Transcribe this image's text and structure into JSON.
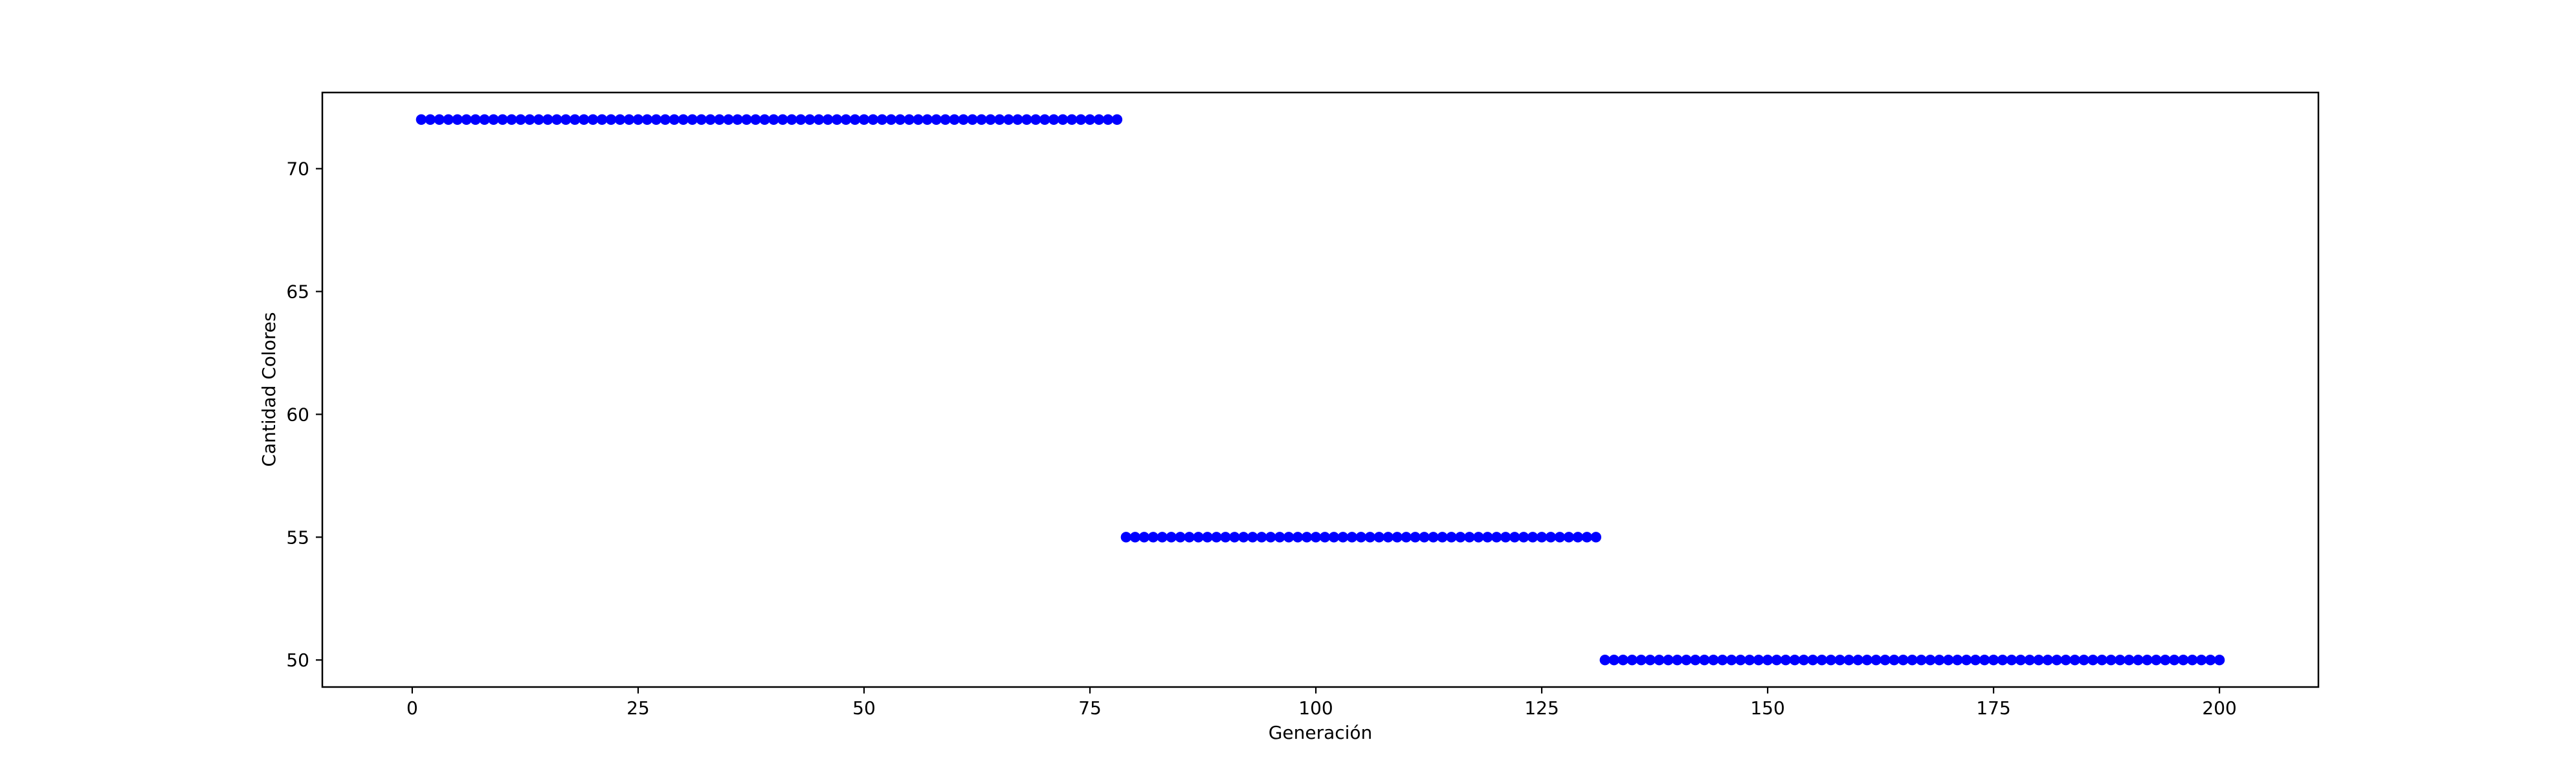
{
  "chart_data": {
    "type": "scatter",
    "title": "",
    "xlabel": "Generación",
    "ylabel": "Cantidad Colores",
    "xlim": [
      -9.95,
      210.95
    ],
    "ylim": [
      48.9,
      73.1
    ],
    "xticks": [
      0,
      25,
      50,
      75,
      100,
      125,
      150,
      175,
      200
    ],
    "yticks": [
      50,
      55,
      60,
      65,
      70
    ],
    "grid": false,
    "legend": "none",
    "marker_color": "#0000ff",
    "segments": [
      {
        "x_start": 1,
        "x_end": 78,
        "y": 72
      },
      {
        "x_start": 79,
        "x_end": 131,
        "y": 55
      },
      {
        "x_start": 132,
        "x_end": 200,
        "y": 50
      }
    ]
  }
}
